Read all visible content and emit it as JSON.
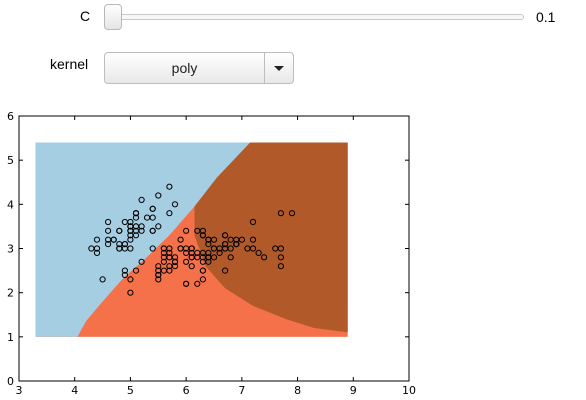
{
  "controls": {
    "c_slider": {
      "label": "C",
      "value_text": "0.1",
      "position": 0.0
    },
    "kernel": {
      "label": "kernel",
      "selected": "poly"
    }
  },
  "chart_data": {
    "type": "scatter",
    "title": "",
    "xlabel": "",
    "ylabel": "",
    "xlim": [
      3,
      10
    ],
    "ylim": [
      0,
      6
    ],
    "xticks": [
      "3",
      "4",
      "5",
      "6",
      "7",
      "8",
      "9",
      "10"
    ],
    "yticks": [
      "0",
      "1",
      "2",
      "3",
      "4",
      "5",
      "6"
    ],
    "decision_regions": {
      "extent_x": [
        3.3,
        8.9
      ],
      "extent_y": [
        1.0,
        5.4
      ],
      "colors": {
        "class_0": "#a6cee3",
        "class_1": "#f4714a",
        "class_2": "#b15928"
      },
      "boundary_01": [
        [
          3.3,
          1.0
        ],
        [
          4.05,
          1.0
        ],
        [
          4.2,
          1.35
        ],
        [
          4.5,
          1.8
        ],
        [
          4.85,
          2.3
        ],
        [
          5.25,
          2.75
        ],
        [
          5.7,
          3.3
        ],
        [
          6.15,
          3.95
        ],
        [
          6.55,
          4.6
        ],
        [
          7.15,
          5.4
        ]
      ],
      "boundary_12": [
        [
          6.15,
          3.95
        ],
        [
          6.15,
          3.3
        ],
        [
          6.35,
          2.6
        ],
        [
          6.7,
          2.1
        ],
        [
          7.2,
          1.7
        ],
        [
          7.8,
          1.4
        ],
        [
          8.3,
          1.2
        ],
        [
          8.9,
          1.1
        ]
      ]
    },
    "points": [
      [
        5.1,
        3.5
      ],
      [
        4.9,
        3.0
      ],
      [
        4.7,
        3.2
      ],
      [
        4.6,
        3.1
      ],
      [
        5.0,
        3.6
      ],
      [
        5.4,
        3.9
      ],
      [
        4.6,
        3.4
      ],
      [
        5.0,
        3.4
      ],
      [
        4.4,
        2.9
      ],
      [
        4.9,
        3.1
      ],
      [
        5.4,
        3.7
      ],
      [
        4.8,
        3.4
      ],
      [
        4.8,
        3.0
      ],
      [
        4.3,
        3.0
      ],
      [
        5.8,
        4.0
      ],
      [
        5.7,
        4.4
      ],
      [
        5.4,
        3.9
      ],
      [
        5.1,
        3.5
      ],
      [
        5.7,
        3.8
      ],
      [
        5.1,
        3.8
      ],
      [
        5.4,
        3.4
      ],
      [
        5.1,
        3.7
      ],
      [
        4.6,
        3.6
      ],
      [
        5.1,
        3.3
      ],
      [
        4.8,
        3.4
      ],
      [
        5.0,
        3.0
      ],
      [
        5.0,
        3.4
      ],
      [
        5.2,
        3.5
      ],
      [
        5.2,
        3.4
      ],
      [
        4.7,
        3.2
      ],
      [
        4.8,
        3.1
      ],
      [
        5.4,
        3.4
      ],
      [
        5.2,
        4.1
      ],
      [
        5.5,
        4.2
      ],
      [
        4.9,
        3.1
      ],
      [
        5.0,
        3.2
      ],
      [
        5.5,
        3.5
      ],
      [
        4.9,
        3.6
      ],
      [
        4.4,
        3.0
      ],
      [
        5.1,
        3.4
      ],
      [
        5.0,
        3.5
      ],
      [
        4.5,
        2.3
      ],
      [
        4.4,
        3.2
      ],
      [
        5.0,
        3.5
      ],
      [
        5.1,
        3.8
      ],
      [
        4.8,
        3.0
      ],
      [
        5.1,
        3.8
      ],
      [
        4.6,
        3.2
      ],
      [
        5.3,
        3.7
      ],
      [
        5.0,
        3.3
      ],
      [
        7.0,
        3.2
      ],
      [
        6.4,
        3.2
      ],
      [
        6.9,
        3.1
      ],
      [
        5.5,
        2.3
      ],
      [
        6.5,
        2.8
      ],
      [
        5.7,
        2.8
      ],
      [
        6.3,
        3.3
      ],
      [
        4.9,
        2.4
      ],
      [
        6.6,
        2.9
      ],
      [
        5.2,
        2.7
      ],
      [
        5.0,
        2.0
      ],
      [
        5.9,
        3.0
      ],
      [
        6.0,
        2.2
      ],
      [
        6.1,
        2.9
      ],
      [
        5.6,
        2.9
      ],
      [
        6.7,
        3.1
      ],
      [
        5.6,
        3.0
      ],
      [
        5.8,
        2.7
      ],
      [
        6.2,
        2.2
      ],
      [
        5.6,
        2.5
      ],
      [
        5.9,
        3.2
      ],
      [
        6.1,
        2.8
      ],
      [
        6.3,
        2.5
      ],
      [
        6.1,
        2.8
      ],
      [
        6.4,
        2.9
      ],
      [
        6.6,
        3.0
      ],
      [
        6.8,
        2.8
      ],
      [
        6.7,
        3.0
      ],
      [
        6.0,
        2.9
      ],
      [
        5.7,
        2.6
      ],
      [
        5.5,
        2.4
      ],
      [
        5.5,
        2.4
      ],
      [
        5.8,
        2.7
      ],
      [
        6.0,
        2.7
      ],
      [
        5.4,
        3.0
      ],
      [
        6.0,
        3.4
      ],
      [
        6.7,
        3.1
      ],
      [
        6.3,
        2.3
      ],
      [
        5.6,
        3.0
      ],
      [
        5.5,
        2.5
      ],
      [
        5.5,
        2.6
      ],
      [
        6.1,
        3.0
      ],
      [
        5.8,
        2.6
      ],
      [
        5.0,
        2.3
      ],
      [
        5.6,
        2.7
      ],
      [
        5.7,
        3.0
      ],
      [
        5.7,
        2.9
      ],
      [
        6.2,
        2.9
      ],
      [
        5.1,
        2.5
      ],
      [
        5.7,
        2.8
      ],
      [
        6.3,
        3.3
      ],
      [
        5.8,
        2.7
      ],
      [
        7.1,
        3.0
      ],
      [
        6.3,
        2.9
      ],
      [
        6.5,
        3.0
      ],
      [
        7.6,
        3.0
      ],
      [
        4.9,
        2.5
      ],
      [
        7.3,
        2.9
      ],
      [
        6.7,
        2.5
      ],
      [
        7.2,
        3.6
      ],
      [
        6.5,
        3.2
      ],
      [
        6.4,
        2.7
      ],
      [
        6.8,
        3.0
      ],
      [
        5.7,
        2.5
      ],
      [
        5.8,
        2.8
      ],
      [
        6.4,
        3.2
      ],
      [
        6.5,
        3.0
      ],
      [
        7.7,
        3.8
      ],
      [
        7.7,
        2.6
      ],
      [
        6.0,
        2.2
      ],
      [
        6.9,
        3.2
      ],
      [
        5.6,
        2.8
      ],
      [
        7.7,
        2.8
      ],
      [
        6.3,
        2.7
      ],
      [
        6.7,
        3.3
      ],
      [
        7.2,
        3.2
      ],
      [
        6.2,
        2.8
      ],
      [
        6.1,
        3.0
      ],
      [
        6.4,
        2.8
      ],
      [
        7.2,
        3.0
      ],
      [
        7.4,
        2.8
      ],
      [
        7.9,
        3.8
      ],
      [
        6.4,
        2.8
      ],
      [
        6.3,
        2.8
      ],
      [
        6.1,
        2.6
      ],
      [
        7.7,
        3.0
      ],
      [
        6.3,
        3.4
      ],
      [
        6.4,
        3.1
      ],
      [
        6.0,
        3.0
      ],
      [
        6.9,
        3.1
      ],
      [
        6.7,
        3.1
      ],
      [
        6.9,
        3.1
      ],
      [
        5.8,
        2.7
      ],
      [
        6.8,
        3.2
      ],
      [
        6.7,
        3.3
      ],
      [
        6.7,
        3.0
      ],
      [
        6.3,
        2.5
      ],
      [
        6.5,
        3.0
      ],
      [
        6.2,
        3.4
      ],
      [
        5.9,
        3.0
      ]
    ]
  }
}
